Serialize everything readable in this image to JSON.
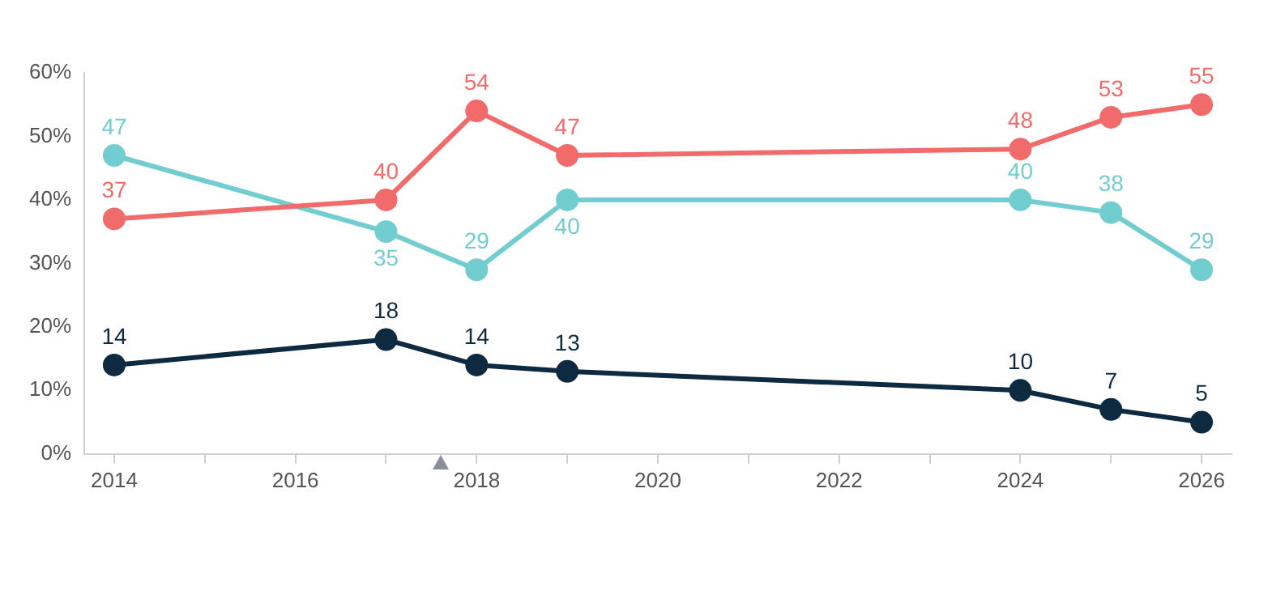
{
  "chart_data": {
    "type": "line",
    "x": [
      2014,
      2017,
      2018,
      2019,
      2024,
      2025,
      2026
    ],
    "series": [
      {
        "color": "#f26b6b",
        "values": [
          37,
          40,
          54,
          47,
          48,
          53,
          55
        ]
      },
      {
        "color": "#72cdd0",
        "values": [
          47,
          35,
          29,
          40,
          40,
          38,
          29
        ]
      },
      {
        "color": "#0d2a40",
        "values": [
          14,
          18,
          14,
          13,
          10,
          7,
          5
        ]
      }
    ],
    "xlim": [
      2013.67,
      2026.33
    ],
    "xticks": [
      2014,
      {
        "value": 2015,
        "label": null
      },
      2016,
      {
        "value": 2017,
        "label": null
      },
      2018,
      {
        "value": 2019,
        "label": null
      },
      2020,
      {
        "value": 2021,
        "label": null
      },
      2022,
      {
        "value": 2023,
        "label": null
      },
      2024,
      {
        "value": 2025,
        "label": null
      },
      2026
    ],
    "ylim": [
      0,
      60
    ],
    "yticks": [
      {
        "value": 0,
        "label": "0%"
      },
      {
        "value": 10,
        "label": "10%"
      },
      {
        "value": 20,
        "label": "20%"
      },
      {
        "value": 30,
        "label": "30%"
      },
      {
        "value": 40,
        "label": "40%"
      },
      {
        "value": 50,
        "label": "50%"
      },
      {
        "value": 60,
        "label": "60%"
      }
    ],
    "grid": false,
    "legend": false,
    "marker": "circle",
    "line_style": "solid",
    "data_labels": true
  }
}
